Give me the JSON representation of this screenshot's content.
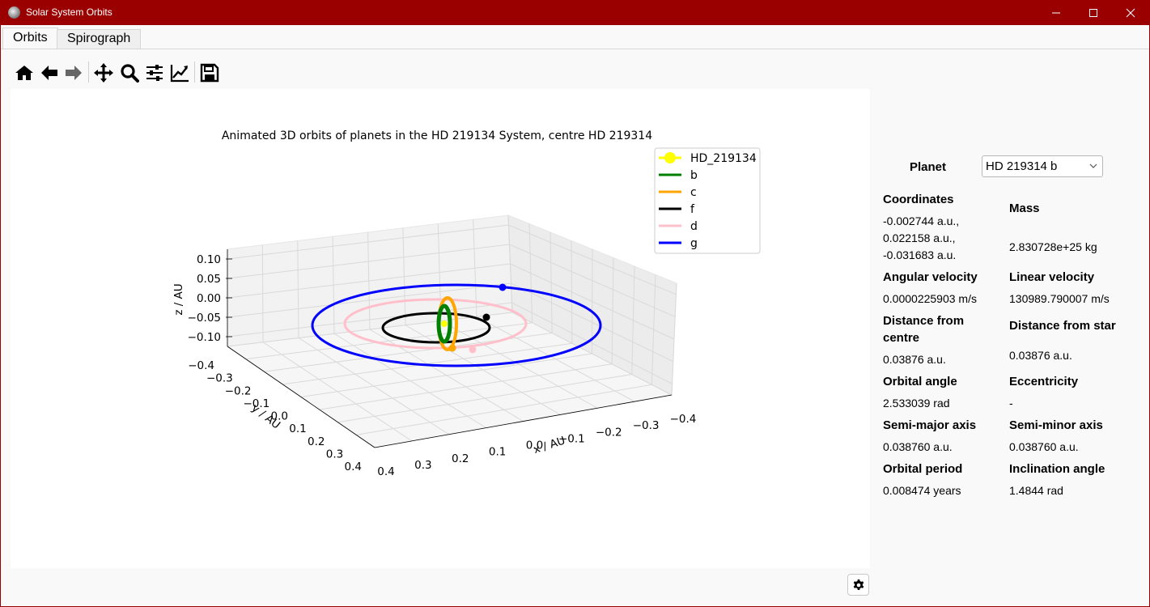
{
  "window": {
    "title": "Solar System Orbits"
  },
  "tabs": [
    {
      "label": "Orbits"
    },
    {
      "label": "Spirograph"
    }
  ],
  "toolbar": [
    "home-icon",
    "back-icon",
    "forward-icon",
    "pan-icon",
    "zoom-icon",
    "configure-subplots-icon",
    "edit-axis-icon",
    "save-icon"
  ],
  "chart_data": {
    "type": "line",
    "title": "Animated 3D orbits of planets in the HD 219134 System, centre HD 219314",
    "xlabel": "x / AU",
    "ylabel": "y / AU",
    "zlabel": "z / AU",
    "x_ticks": [
      "0.4",
      "0.3",
      "0.2",
      "0.1",
      "0.0",
      "−0.1",
      "−0.2",
      "−0.3",
      "−0.4"
    ],
    "y_ticks": [
      "−0.4",
      "−0.3",
      "−0.2",
      "−0.1",
      "0.0",
      "0.1",
      "0.2",
      "0.3",
      "0.4"
    ],
    "z_ticks": [
      "0.10",
      "0.05",
      "0.00",
      "−0.05",
      "−0.10"
    ],
    "xlim": [
      -0.4,
      0.4
    ],
    "ylim": [
      -0.4,
      0.4
    ],
    "zlim": [
      -0.1,
      0.1
    ],
    "grid": true,
    "legend_position": "top-right",
    "series": [
      {
        "name": "HD_219134",
        "color": "#ffff00",
        "marker": "circle"
      },
      {
        "name": "b",
        "color": "#008000"
      },
      {
        "name": "c",
        "color": "#ffa500"
      },
      {
        "name": "f",
        "color": "#000000"
      },
      {
        "name": "d",
        "color": "#ffc0cb"
      },
      {
        "name": "g",
        "color": "#0000ff"
      }
    ]
  },
  "info": {
    "planet_label": "Planet",
    "planet_selected": "HD 219314 b",
    "coordinates_label": "Coordinates",
    "coordinates_lines": [
      "-0.002744 a.u.,",
      "0.022158 a.u.,",
      "-0.031683 a.u."
    ],
    "mass_label": "Mass",
    "mass_value": "2.830728e+25 kg",
    "angular_velocity_label": "Angular velocity",
    "angular_velocity_value": "0.0000225903 m/s",
    "linear_velocity_label": "Linear velocity",
    "linear_velocity_value": "130989.790007 m/s",
    "distance_centre_label_1": "Distance from",
    "distance_centre_label_2": "centre",
    "distance_centre_value": "0.03876 a.u.",
    "distance_star_label": "Distance from star",
    "distance_star_value": "0.03876 a.u.",
    "orbital_angle_label": "Orbital angle",
    "orbital_angle_value": "2.533039 rad",
    "eccentricity_label": "Eccentricity",
    "eccentricity_value": "-",
    "semi_major_label": "Semi-major axis",
    "semi_major_value": "0.038760 a.u.",
    "semi_minor_label": "Semi-minor axis",
    "semi_minor_value": "0.038760 a.u.",
    "orbital_period_label": "Orbital period",
    "orbital_period_value": "0.008474 years",
    "inclination_label": "Inclination angle",
    "inclination_value": "1.4844 rad"
  }
}
